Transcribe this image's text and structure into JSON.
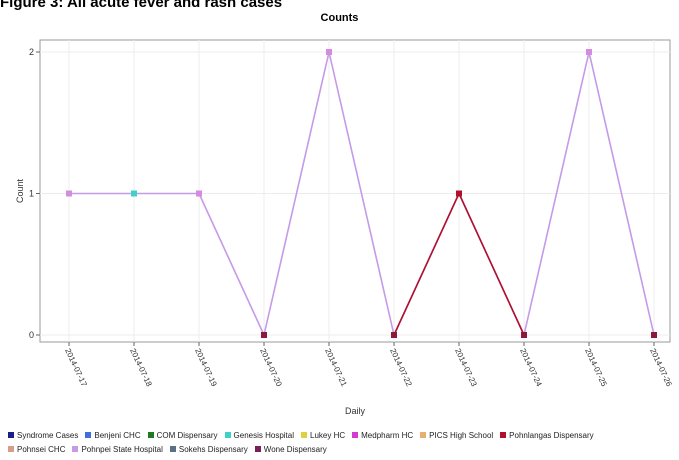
{
  "figure_heading": "Figure 3: All acute fever and rash cases",
  "chart_data": {
    "type": "line",
    "title": "Counts",
    "xlabel": "Daily",
    "ylabel": "Count",
    "ylim": [
      0,
      2
    ],
    "yticks": [
      "0",
      "1",
      "2"
    ],
    "grid": true,
    "legend_position": "bottom",
    "categories": [
      "2014-07-17",
      "2014-07-18",
      "2014-07-19",
      "2014-07-20",
      "2014-07-21",
      "2014-07-22",
      "2014-07-23",
      "2014-07-24",
      "2014-07-25",
      "2014-07-26"
    ],
    "series": [
      {
        "name": "Pohnpei State Hospital",
        "color": "#c59ae8",
        "values": [
          1,
          1,
          1,
          0,
          2,
          0,
          1,
          0,
          2,
          0
        ]
      },
      {
        "name": "Pohnlangas Dispensary",
        "color": "#b0102e",
        "values": [
          null,
          null,
          null,
          null,
          null,
          0,
          1,
          0,
          null,
          null
        ]
      }
    ],
    "legend": [
      {
        "name": "Syndrome Cases",
        "color": "#1c1c8c"
      },
      {
        "name": "Benjeni CHC",
        "color": "#3f6fd8"
      },
      {
        "name": "COM Dispensary",
        "color": "#1e7a1e"
      },
      {
        "name": "Genesis Hospital",
        "color": "#3fd0c8"
      },
      {
        "name": "Lukey HC",
        "color": "#e0d040"
      },
      {
        "name": "Medpharm HC",
        "color": "#d23ad2"
      },
      {
        "name": "PICS High School",
        "color": "#e8b070"
      },
      {
        "name": "Pohnlangas Dispensary",
        "color": "#b0102e"
      },
      {
        "name": "Pohnsei CHC",
        "color": "#d99b8b"
      },
      {
        "name": "Pohnpei State Hospital",
        "color": "#c59ae8"
      },
      {
        "name": "Sokehs Dispensary",
        "color": "#5b6f86"
      },
      {
        "name": "Wone Dispensary",
        "color": "#7a1e5a"
      }
    ],
    "marker_colors": [
      "#d48be0",
      "#3fd0c8",
      "#d48be0",
      "#8b1a3a",
      "#d48be0",
      "#8b1a3a",
      "#b0102e",
      "#8b1a3a",
      "#d48be0",
      "#8b1a3a"
    ]
  }
}
